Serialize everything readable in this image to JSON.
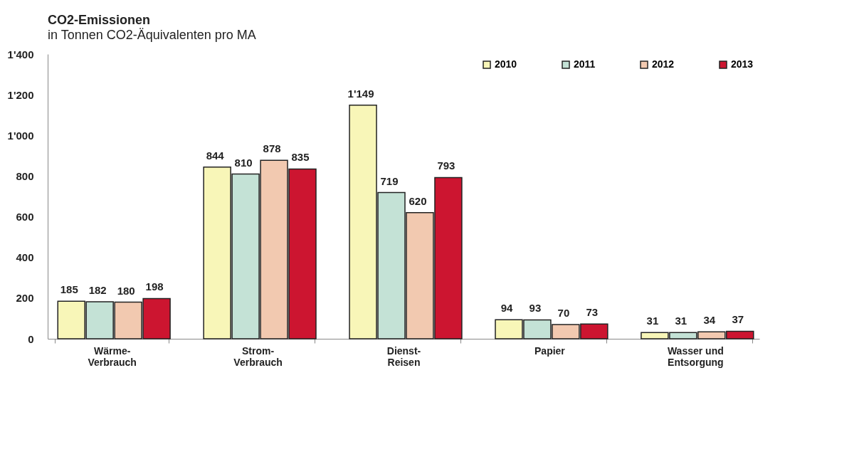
{
  "chart_data": {
    "type": "bar",
    "title": "CO2-Emissionen",
    "subtitle": "in Tonnen CO2-Äquivalenten pro MA",
    "categories": [
      "Wärme-\nVerbrauch",
      "Strom-\nVerbrauch",
      "Dienst-\nReisen",
      "Papier",
      "Wasser und\nEntsorgung"
    ],
    "series": [
      {
        "name": "2010",
        "color": "#f8f6b8",
        "values": [
          185,
          844,
          1149,
          94,
          31
        ],
        "value_labels": [
          "185",
          "844",
          "1'149",
          "94",
          "31"
        ]
      },
      {
        "name": "2011",
        "color": "#c4e2d6",
        "values": [
          182,
          810,
          719,
          93,
          31
        ],
        "value_labels": [
          "182",
          "810",
          "719",
          "93",
          "31"
        ]
      },
      {
        "name": "2012",
        "color": "#f2c9b0",
        "values": [
          180,
          878,
          620,
          70,
          34
        ],
        "value_labels": [
          "180",
          "878",
          "620",
          "70",
          "34"
        ]
      },
      {
        "name": "2013",
        "color": "#cc1530",
        "values": [
          198,
          835,
          793,
          73,
          37
        ],
        "value_labels": [
          "198",
          "835",
          "793",
          "73",
          "37"
        ]
      }
    ],
    "ylim": [
      0,
      1400
    ],
    "yticks": [
      0,
      200,
      400,
      600,
      800,
      {
        "value": 1000,
        "label": "1'000"
      },
      {
        "value": 1200,
        "label": "1'200"
      },
      {
        "value": 1400,
        "label": "1'400"
      }
    ],
    "grid": false,
    "legend": "top right"
  }
}
